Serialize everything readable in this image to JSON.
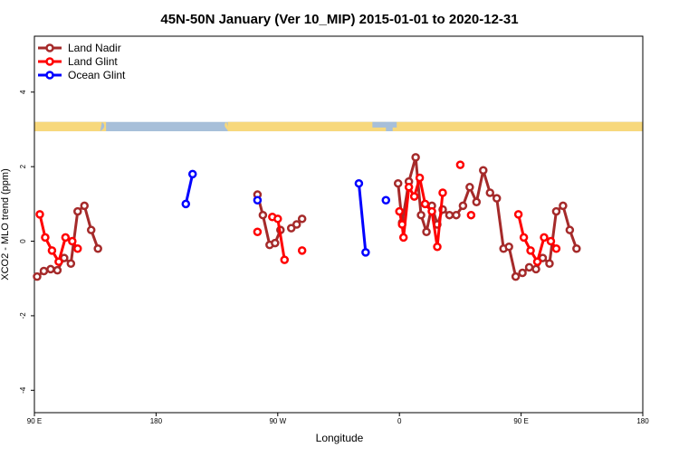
{
  "chart_data": {
    "type": "line",
    "title": "45N-50N January (Ver 10_MIP)   2015-01-01 to 2020-12-31",
    "xlabel": "Longitude",
    "ylabel": "XCO2 - MLO trend (ppm)",
    "xlim": [
      90,
      540
    ],
    "ylim": [
      -4.6,
      5.5
    ],
    "x_ticks": [
      {
        "value": 90,
        "label": "90 E"
      },
      {
        "value": 180,
        "label": "180"
      },
      {
        "value": 270,
        "label": "90 W"
      },
      {
        "value": 360,
        "label": "0"
      },
      {
        "value": 450,
        "label": "90 E"
      },
      {
        "value": 540,
        "label": "180"
      }
    ],
    "y_ticks": [
      {
        "value": -4,
        "label": "-4"
      },
      {
        "value": -2,
        "label": "-2"
      },
      {
        "value": 0,
        "label": "0"
      },
      {
        "value": 2,
        "label": "2"
      },
      {
        "value": 4,
        "label": "4"
      }
    ],
    "legend_position": "top-left",
    "map_strip": {
      "y_range": [
        2.95,
        3.2
      ],
      "land_color": "#f7d87c",
      "ocean_color": "#a7bfd9"
    },
    "series": [
      {
        "name": "Land Nadir",
        "color": "#a52a2a",
        "segments": [
          [
            [
              92,
              -0.95
            ],
            [
              97,
              -0.8
            ],
            [
              102,
              -0.75
            ],
            [
              107,
              -0.78
            ],
            [
              112,
              -0.45
            ],
            [
              117,
              -0.6
            ],
            [
              122,
              0.8
            ],
            [
              127,
              0.95
            ],
            [
              132,
              0.3
            ],
            [
              137,
              -0.2
            ]
          ],
          [
            [
              280,
              0.35
            ],
            [
              284,
              0.45
            ],
            [
              288,
              0.6
            ]
          ],
          [
            [
              255,
              1.25
            ],
            [
              259,
              0.7
            ],
            [
              264,
              -0.1
            ],
            [
              268,
              -0.05
            ],
            [
              272,
              0.3
            ]
          ],
          [
            [
              359,
              1.55
            ],
            [
              362,
              0.5
            ],
            [
              367,
              1.6
            ],
            [
              372,
              2.25
            ],
            [
              376,
              0.7
            ],
            [
              380,
              0.25
            ],
            [
              384,
              0.95
            ],
            [
              388,
              0.45
            ],
            [
              392,
              0.85
            ],
            [
              397,
              0.7
            ],
            [
              402,
              0.7
            ],
            [
              407,
              0.95
            ],
            [
              412,
              1.45
            ],
            [
              417,
              1.05
            ],
            [
              422,
              1.9
            ],
            [
              427,
              1.3
            ],
            [
              432,
              1.15
            ],
            [
              437,
              -0.2
            ]
          ],
          [
            [
              441,
              -0.15
            ],
            [
              446,
              -0.95
            ],
            [
              451,
              -0.85
            ],
            [
              456,
              -0.7
            ],
            [
              461,
              -0.75
            ],
            [
              466,
              -0.45
            ],
            [
              471,
              -0.6
            ],
            [
              476,
              0.8
            ],
            [
              481,
              0.95
            ],
            [
              486,
              0.3
            ],
            [
              491,
              -0.2
            ]
          ]
        ]
      },
      {
        "name": "Land Glint",
        "color": "#ff0000",
        "segments": [
          [
            [
              94,
              0.72
            ],
            [
              98,
              0.1
            ],
            [
              103,
              -0.25
            ],
            [
              108,
              -0.55
            ],
            [
              113,
              0.1
            ],
            [
              118,
              0.0
            ],
            [
              122,
              -0.2
            ]
          ],
          [
            [
              255,
              0.25
            ]
          ],
          [
            [
              266,
              0.65
            ],
            [
              270,
              0.6
            ],
            [
              275,
              -0.5
            ]
          ],
          [
            [
              288,
              -0.25
            ]
          ],
          [
            [
              360,
              0.8
            ],
            [
              362,
              0.45
            ],
            [
              363,
              0.1
            ],
            [
              367,
              1.45
            ],
            [
              371,
              1.2
            ],
            [
              375,
              1.7
            ],
            [
              379,
              1.0
            ],
            [
              384,
              0.8
            ],
            [
              388,
              -0.15
            ],
            [
              392,
              1.3
            ]
          ],
          [
            [
              405,
              2.05
            ]
          ],
          [
            [
              413,
              0.7
            ]
          ],
          [
            [
              448,
              0.72
            ],
            [
              452,
              0.1
            ],
            [
              457,
              -0.25
            ],
            [
              462,
              -0.55
            ],
            [
              467,
              0.1
            ],
            [
              472,
              0.0
            ],
            [
              476,
              -0.2
            ]
          ]
        ]
      },
      {
        "name": "Ocean Glint",
        "color": "#0000ff",
        "segments": [
          [
            [
              202,
              1.0
            ],
            [
              207,
              1.8
            ]
          ],
          [
            [
              255,
              1.1
            ]
          ],
          [
            [
              330,
              1.55
            ],
            [
              335,
              -0.3
            ]
          ],
          [
            [
              350,
              1.1
            ]
          ]
        ]
      }
    ]
  }
}
